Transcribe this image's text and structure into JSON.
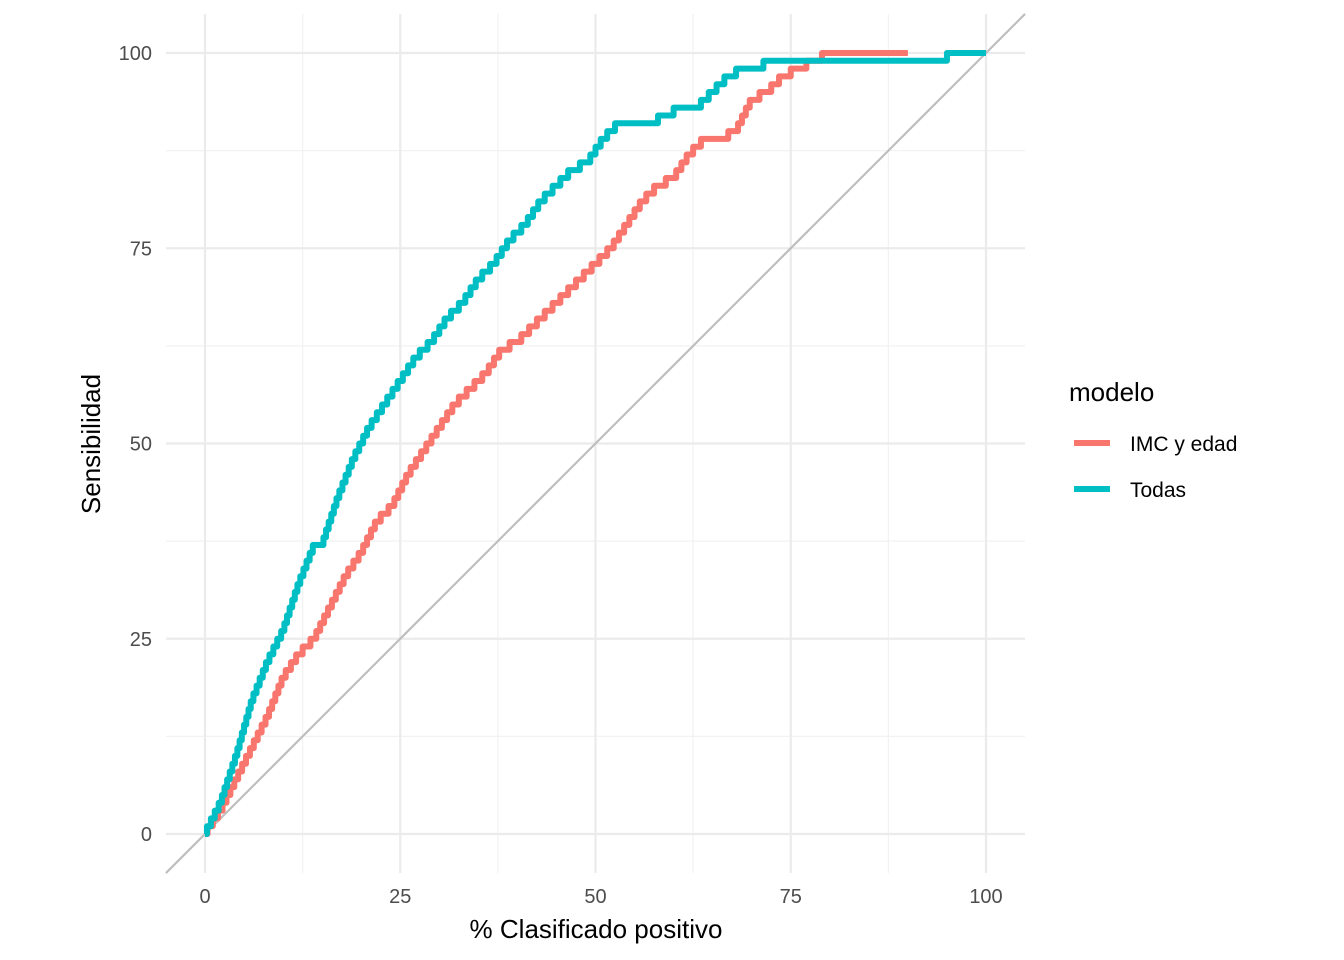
{
  "chart_data": {
    "type": "line",
    "xlabel": "% Clasificado positivo",
    "ylabel": "Sensibilidad",
    "xlim": [
      0,
      100
    ],
    "ylim": [
      0,
      100
    ],
    "x_ticks": [
      0,
      25,
      50,
      75,
      100
    ],
    "y_ticks": [
      0,
      25,
      50,
      75,
      100
    ],
    "x_tick_labels": [
      "0",
      "25",
      "50",
      "75",
      "100"
    ],
    "y_tick_labels": [
      "0",
      "25",
      "50",
      "75",
      "100"
    ],
    "grid": true,
    "legend": {
      "title": "modelo",
      "position": "right",
      "entries": [
        "IMC y edad",
        "Todas"
      ]
    },
    "reference_line": {
      "from": [
        0,
        0
      ],
      "to": [
        100,
        100
      ],
      "color": "#bebebe"
    },
    "series": [
      {
        "name": "IMC y edad",
        "color": "#F8766D",
        "x": [
          0,
          2,
          4,
          6,
          8,
          10,
          12,
          14,
          16,
          18,
          20,
          22,
          24,
          26,
          28,
          30,
          32,
          34,
          36,
          38,
          40,
          42,
          44,
          46,
          48,
          50,
          52,
          54,
          56,
          58,
          60,
          62,
          64,
          66,
          68,
          70,
          72,
          74,
          76,
          78,
          80,
          85,
          90
        ],
        "y": [
          0,
          3,
          7,
          11,
          15,
          20,
          23,
          25,
          29,
          33,
          36,
          40,
          42,
          46,
          49,
          52,
          55,
          57,
          59,
          62,
          63,
          65,
          67,
          69,
          71,
          73,
          75,
          78,
          81,
          83,
          84,
          87,
          89,
          89,
          90,
          94,
          95,
          97,
          98,
          99,
          100,
          100,
          100
        ]
      },
      {
        "name": "Todas",
        "color": "#00BFC4",
        "x": [
          0,
          2,
          4,
          6,
          8,
          10,
          12,
          14,
          15,
          17,
          19,
          21,
          23,
          25,
          27,
          29,
          31,
          33,
          35,
          37,
          39,
          41,
          43,
          45,
          47,
          49,
          51,
          53,
          57,
          59,
          61,
          63,
          65,
          67,
          69,
          71,
          72,
          75,
          80,
          90,
          100
        ],
        "y": [
          0,
          4,
          10,
          17,
          22,
          26,
          32,
          37,
          37,
          43,
          48,
          52,
          55,
          58,
          61,
          63,
          66,
          68,
          71,
          73,
          76,
          78,
          81,
          83,
          85,
          86,
          89,
          91,
          91,
          92,
          93,
          93,
          95,
          97,
          98,
          98,
          99,
          99,
          99,
          99,
          100
        ]
      }
    ]
  }
}
